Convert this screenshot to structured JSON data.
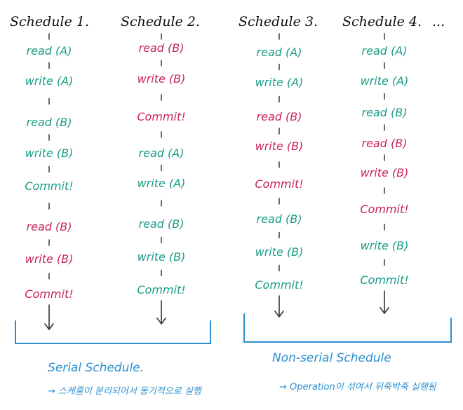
{
  "colors": {
    "txn_a": "#1a9c86",
    "txn_b": "#c8245f",
    "annotation": "#2b8fd0",
    "text": "#111111"
  },
  "ellipsis": "...",
  "schedules": [
    {
      "title": "Schedule 1.",
      "ops": [
        {
          "text": "read (A)",
          "txn": "a"
        },
        {
          "text": "write (A)",
          "txn": "a"
        },
        {
          "text": "read (B)",
          "txn": "a"
        },
        {
          "text": "write (B)",
          "txn": "a"
        },
        {
          "text": "Commit!",
          "txn": "a"
        },
        {
          "text": "read (B)",
          "txn": "b"
        },
        {
          "text": "write (B)",
          "txn": "b"
        },
        {
          "text": "Commit!",
          "txn": "b"
        }
      ]
    },
    {
      "title": "Schedule 2.",
      "ops": [
        {
          "text": "read (B)",
          "txn": "b"
        },
        {
          "text": "write (B)",
          "txn": "b"
        },
        {
          "text": "Commit!",
          "txn": "b"
        },
        {
          "text": "read (A)",
          "txn": "a"
        },
        {
          "text": "write (A)",
          "txn": "a"
        },
        {
          "text": "read (B)",
          "txn": "a"
        },
        {
          "text": "write (B)",
          "txn": "a"
        },
        {
          "text": "Commit!",
          "txn": "a"
        }
      ]
    },
    {
      "title": "Schedule 3.",
      "ops": [
        {
          "text": "read (A)",
          "txn": "a"
        },
        {
          "text": "write (A)",
          "txn": "a"
        },
        {
          "text": "read (B)",
          "txn": "b"
        },
        {
          "text": "write (B)",
          "txn": "b"
        },
        {
          "text": "Commit!",
          "txn": "b"
        },
        {
          "text": "read (B)",
          "txn": "a"
        },
        {
          "text": "write (B)",
          "txn": "a"
        },
        {
          "text": "Commit!",
          "txn": "a"
        }
      ]
    },
    {
      "title": "Schedule 4.",
      "ops": [
        {
          "text": "read (A)",
          "txn": "a"
        },
        {
          "text": "write (A)",
          "txn": "a"
        },
        {
          "text": "read (B)",
          "txn": "a"
        },
        {
          "text": "read (B)",
          "txn": "b"
        },
        {
          "text": "write (B)",
          "txn": "b"
        },
        {
          "text": "Commit!",
          "txn": "b"
        },
        {
          "text": "write (B)",
          "txn": "a"
        },
        {
          "text": "Commit!",
          "txn": "a"
        }
      ]
    }
  ],
  "groups": [
    {
      "label": "Serial Schedule.",
      "note": "→ 스케줄이 분리되어서 동기적으로 실행"
    },
    {
      "label": "Non-serial Schedule",
      "note": "→ Operation이 섞여서 뒤죽박죽 실행됨"
    }
  ]
}
